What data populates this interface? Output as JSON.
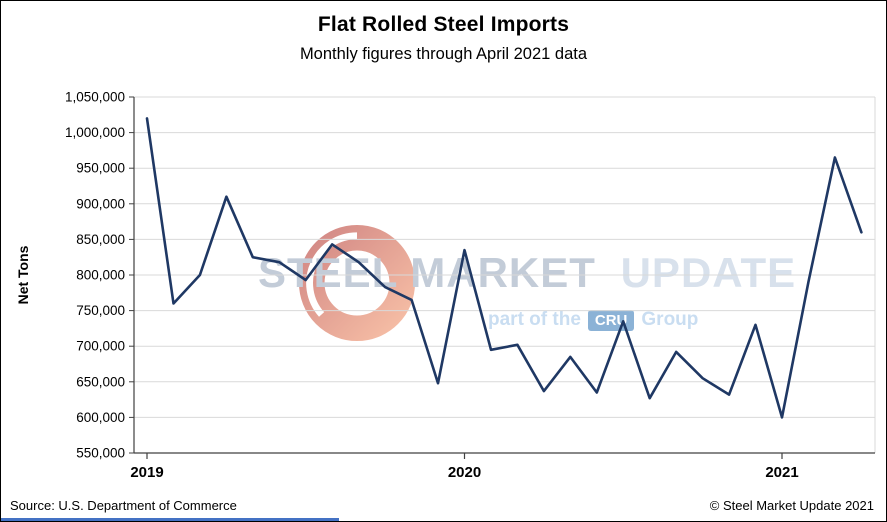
{
  "header": {
    "title": "Flat Rolled Steel Imports",
    "subtitle": "Monthly figures through April 2021 data"
  },
  "footer": {
    "source": "Source: U.S. Department of Commerce",
    "copyright": "© Steel Market Update 2021"
  },
  "watermark": {
    "line1_a": "STEEL MARKET",
    "line1_b": "UPDATE",
    "line2_pre": "part of the",
    "line2_badge": "CRU",
    "line2_post": "Group"
  },
  "chart_data": {
    "type": "line",
    "title": "Flat Rolled Steel Imports",
    "subtitle": "Monthly figures through April 2021 data",
    "xlabel": "",
    "ylabel": "Net Tons",
    "ylim": [
      550000,
      1050000
    ],
    "y_tick_step": 50000,
    "grid": true,
    "legend": "none",
    "line_color": "#1f3864",
    "grid_color": "#d9d9d9",
    "axis_color": "#404040",
    "x_tick_labels": [
      "2019",
      "2020",
      "2021"
    ],
    "x_tick_month_indices": [
      0,
      12,
      24
    ],
    "categories": [
      "Jan 2019",
      "Feb 2019",
      "Mar 2019",
      "Apr 2019",
      "May 2019",
      "Jun 2019",
      "Jul 2019",
      "Aug 2019",
      "Sep 2019",
      "Oct 2019",
      "Nov 2019",
      "Dec 2019",
      "Jan 2020",
      "Feb 2020",
      "Mar 2020",
      "Apr 2020",
      "May 2020",
      "Jun 2020",
      "Jul 2020",
      "Aug 2020",
      "Sep 2020",
      "Oct 2020",
      "Nov 2020",
      "Dec 2020",
      "Jan 2021",
      "Feb 2021",
      "Mar 2021",
      "Apr 2021"
    ],
    "values": [
      1020000,
      760000,
      800000,
      910000,
      825000,
      818000,
      793000,
      843000,
      818000,
      783000,
      765000,
      648000,
      835000,
      695000,
      702000,
      637000,
      685000,
      635000,
      735000,
      627000,
      692000,
      655000,
      632000,
      730000,
      600000,
      790000,
      965000,
      860000
    ]
  }
}
